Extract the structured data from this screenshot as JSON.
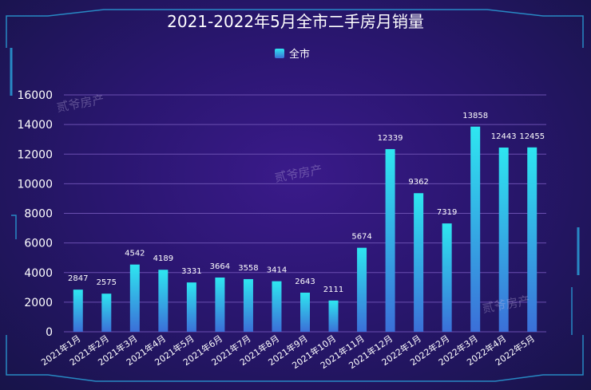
{
  "chart_data": {
    "type": "bar",
    "title": "2021-2022年5月全市二手房月销量",
    "legend": [
      "全市"
    ],
    "categories": [
      "2021年1月",
      "2021年2月",
      "2021年3月",
      "2021年4月",
      "2021年5月",
      "2021年6月",
      "2021年7月",
      "2021年8月",
      "2021年9月",
      "2021年10月",
      "2021年11月",
      "2021年12月",
      "2022年1月",
      "2022年2月",
      "2022年3月",
      "2022年4月",
      "2022年5月"
    ],
    "series": [
      {
        "name": "全市",
        "values": [
          2847,
          2575,
          4542,
          4189,
          3331,
          3664,
          3558,
          3414,
          2643,
          2111,
          5674,
          12339,
          9362,
          7319,
          13858,
          12443,
          12455
        ]
      }
    ],
    "ylim": [
      0,
      16000
    ],
    "yticks": [
      0,
      2000,
      4000,
      6000,
      8000,
      10000,
      12000,
      14000,
      16000
    ],
    "grid": true,
    "legend_position": "top-center",
    "colors": {
      "bar_top": "#2ee6f0",
      "bar_bottom": "#3b6fd8",
      "grid": "#6a4fb0"
    }
  },
  "watermarks": [
    "贰爷房产",
    "贰爷房产",
    "贰爷房产"
  ]
}
